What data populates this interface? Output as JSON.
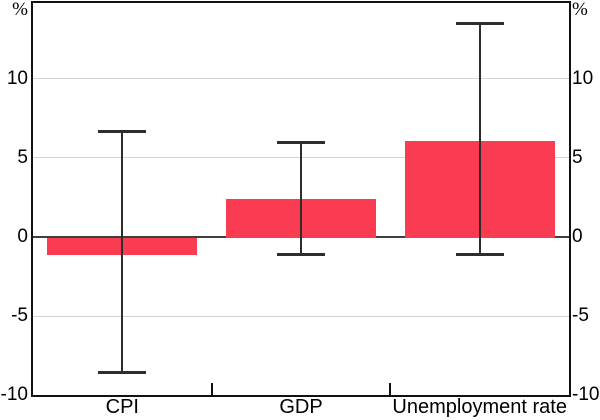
{
  "figure": {
    "percent_left": "%",
    "percent_right": "%"
  },
  "chart_data": {
    "type": "bar",
    "title": "",
    "categories": [
      "CPI",
      "GDP",
      "Unemployment rate"
    ],
    "values": [
      -1.1,
      2.4,
      6.1
    ],
    "error_low": [
      -8.6,
      -1.1,
      -1.1
    ],
    "error_high": [
      6.7,
      6.0,
      13.5
    ],
    "unit": "%",
    "xlabel": "",
    "ylabel_left": "%",
    "ylabel_right": "%",
    "yticks": [
      -10,
      -5,
      0,
      5,
      10
    ],
    "ylim": [
      -10,
      14.8
    ],
    "grid": true,
    "legend_position": "none",
    "colors": {
      "bar": "#FA3C52",
      "grid": "#D5D5D5",
      "zero_line": "#3F3F3F",
      "whisker": "#2D2D2D",
      "frame": "#111111",
      "text": "#000000"
    }
  }
}
